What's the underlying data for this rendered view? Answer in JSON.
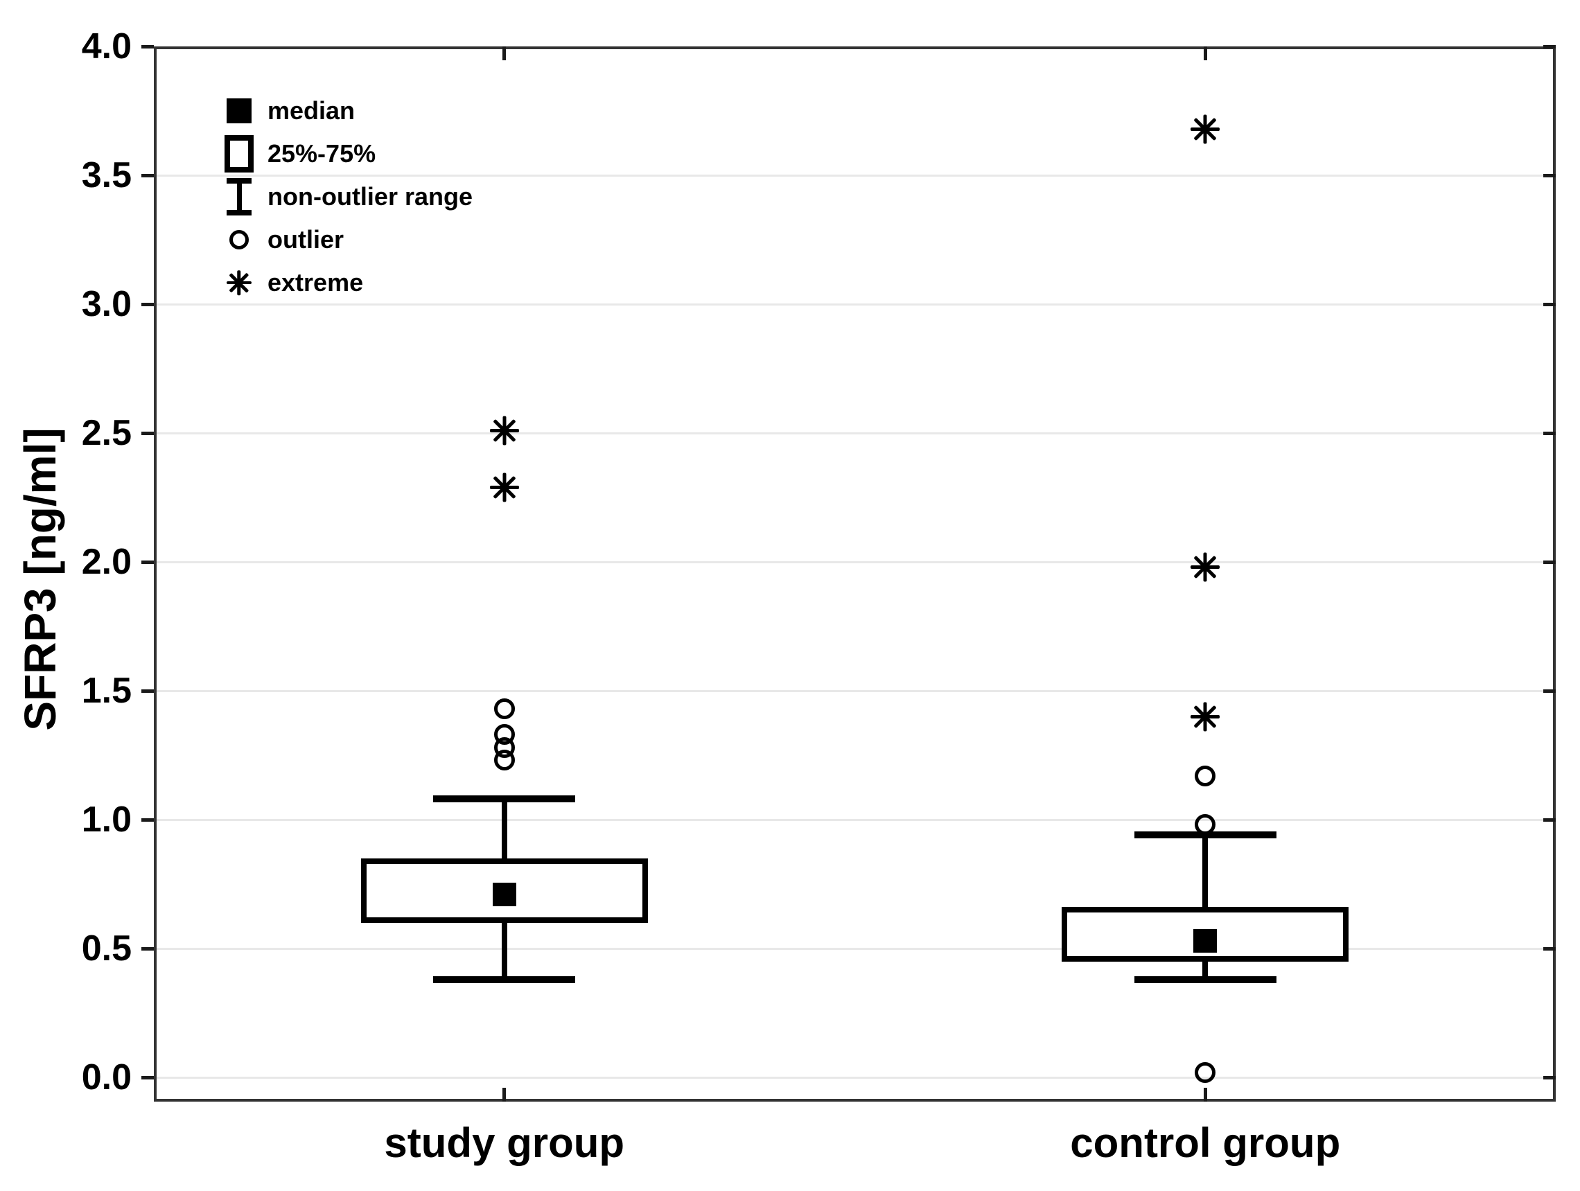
{
  "chart_data": {
    "type": "box",
    "title": "",
    "ylabel": "SFRP3 [ng/ml]",
    "xlabel": "",
    "ylim": [
      0.0,
      4.0
    ],
    "yticks": [
      4.0,
      3.5,
      3.0,
      2.5,
      2.0,
      1.5,
      1.0,
      0.5,
      0.0
    ],
    "ytick_labels": [
      "4.0",
      "3.5",
      "3.0",
      "2.5",
      "2.0",
      "1.5",
      "1.0",
      "0.5",
      "0.0"
    ],
    "categories": [
      "study group",
      "control group"
    ],
    "grid": "horizontal",
    "legend_position": "top-left-inside",
    "groups": [
      {
        "label": "study group",
        "median": 0.71,
        "q1": 0.61,
        "q3": 0.84,
        "whisker_low": 0.38,
        "whisker_high": 1.08,
        "outliers": [
          1.43,
          1.33,
          1.28,
          1.23
        ],
        "extremes": [
          2.51,
          2.29
        ]
      },
      {
        "label": "control group",
        "median": 0.53,
        "q1": 0.46,
        "q3": 0.65,
        "whisker_low": 0.38,
        "whisker_high": 0.94,
        "outliers": [
          1.17,
          0.98,
          0.02
        ],
        "extremes": [
          3.68,
          1.98,
          1.4
        ]
      }
    ],
    "legend": [
      {
        "marker": "median-square",
        "label": "median"
      },
      {
        "marker": "iqr-box",
        "label": "25%-75%"
      },
      {
        "marker": "whisker-range",
        "label": "non-outlier range"
      },
      {
        "marker": "outlier-circle",
        "label": "outlier"
      },
      {
        "marker": "extreme-asterisk",
        "label": "extreme"
      }
    ],
    "colors": {
      "marker": "#000000",
      "frame": "#333333",
      "gridline": "#e8e8e8",
      "background": "#ffffff",
      "text": "#000000"
    }
  }
}
